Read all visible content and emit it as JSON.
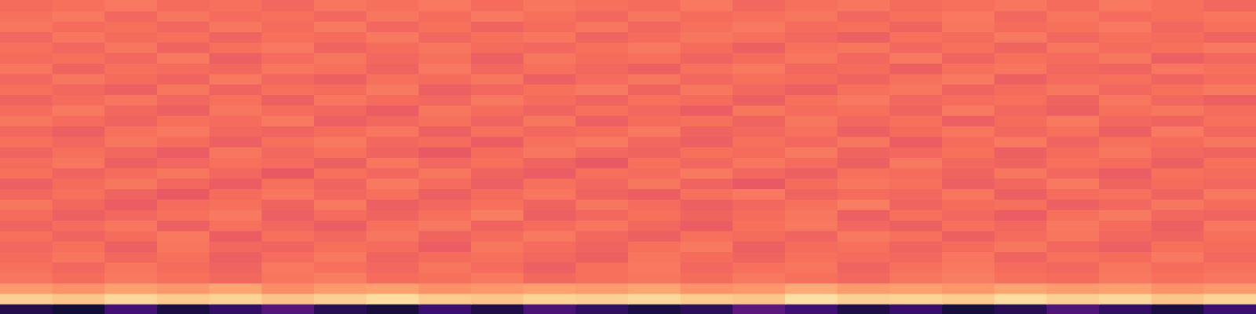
{
  "chart_data": {
    "type": "heatmap",
    "tick_labels": false,
    "xlim": [
      0,
      24
    ],
    "ylim": [
      0,
      30
    ],
    "zlim": [
      0,
      1
    ],
    "cells": [
      [
        0.14,
        0.1,
        0.22,
        0.12,
        0.18,
        0.26,
        0.15,
        0.11,
        0.2,
        0.13,
        0.24,
        0.17,
        0.12,
        0.16,
        0.28,
        0.21,
        0.13,
        0.19,
        0.11,
        0.15,
        0.25,
        0.18,
        0.12,
        0.2
      ],
      [
        0.9,
        0.88,
        0.92,
        0.89,
        0.91,
        0.87,
        0.9,
        0.93,
        0.89,
        0.88,
        0.91,
        0.9,
        0.92,
        0.89,
        0.88,
        0.94,
        0.9,
        0.91,
        0.89,
        0.93,
        0.9,
        0.92,
        0.88,
        0.91
      ],
      [
        0.79,
        0.77,
        0.8,
        0.78,
        0.81,
        0.76,
        0.79,
        0.8,
        0.77,
        0.78,
        0.8,
        0.79,
        0.81,
        0.77,
        0.78,
        0.82,
        0.79,
        0.8,
        0.78,
        0.81,
        0.79,
        0.8,
        0.77,
        0.79
      ],
      [
        0.71,
        0.69,
        0.72,
        0.7,
        0.68,
        0.71,
        0.73,
        0.69,
        0.7,
        0.72,
        0.68,
        0.7,
        0.71,
        0.69,
        0.72,
        0.7,
        0.68,
        0.71,
        0.73,
        0.7,
        0.69,
        0.72,
        0.7,
        0.71
      ],
      [
        0.7,
        0.68,
        0.71,
        0.69,
        0.67,
        0.72,
        0.7,
        0.68,
        0.71,
        0.69,
        0.66,
        0.7,
        0.72,
        0.68,
        0.7,
        0.71,
        0.67,
        0.7,
        0.72,
        0.69,
        0.68,
        0.71,
        0.69,
        0.7
      ],
      [
        0.69,
        0.71,
        0.68,
        0.7,
        0.66,
        0.69,
        0.72,
        0.67,
        0.69,
        0.7,
        0.68,
        0.66,
        0.71,
        0.69,
        0.67,
        0.7,
        0.69,
        0.68,
        0.71,
        0.67,
        0.7,
        0.69,
        0.72,
        0.68
      ],
      [
        0.68,
        0.7,
        0.66,
        0.71,
        0.68,
        0.67,
        0.7,
        0.69,
        0.65,
        0.71,
        0.69,
        0.67,
        0.7,
        0.72,
        0.66,
        0.69,
        0.7,
        0.67,
        0.69,
        0.71,
        0.68,
        0.66,
        0.7,
        0.69
      ],
      [
        0.7,
        0.67,
        0.69,
        0.72,
        0.65,
        0.7,
        0.68,
        0.71,
        0.67,
        0.69,
        0.72,
        0.68,
        0.66,
        0.7,
        0.69,
        0.67,
        0.72,
        0.7,
        0.66,
        0.69,
        0.71,
        0.68,
        0.67,
        0.7
      ],
      [
        0.67,
        0.69,
        0.71,
        0.66,
        0.7,
        0.68,
        0.65,
        0.7,
        0.72,
        0.67,
        0.69,
        0.71,
        0.68,
        0.65,
        0.7,
        0.72,
        0.68,
        0.66,
        0.7,
        0.68,
        0.72,
        0.69,
        0.66,
        0.71
      ],
      [
        0.69,
        0.66,
        0.68,
        0.7,
        0.72,
        0.66,
        0.69,
        0.67,
        0.7,
        0.73,
        0.66,
        0.68,
        0.7,
        0.67,
        0.69,
        0.71,
        0.66,
        0.7,
        0.68,
        0.65,
        0.7,
        0.72,
        0.68,
        0.67
      ],
      [
        0.71,
        0.68,
        0.65,
        0.69,
        0.7,
        0.67,
        0.72,
        0.66,
        0.68,
        0.7,
        0.67,
        0.71,
        0.69,
        0.66,
        0.68,
        0.7,
        0.73,
        0.67,
        0.69,
        0.7,
        0.66,
        0.68,
        0.71,
        0.69
      ],
      [
        0.68,
        0.7,
        0.67,
        0.64,
        0.69,
        0.71,
        0.68,
        0.7,
        0.66,
        0.69,
        0.71,
        0.67,
        0.65,
        0.7,
        0.72,
        0.67,
        0.69,
        0.68,
        0.71,
        0.66,
        0.69,
        0.7,
        0.67,
        0.72
      ],
      [
        0.66,
        0.69,
        0.71,
        0.68,
        0.65,
        0.7,
        0.67,
        0.72,
        0.69,
        0.66,
        0.7,
        0.68,
        0.71,
        0.67,
        0.64,
        0.69,
        0.71,
        0.7,
        0.66,
        0.68,
        0.72,
        0.67,
        0.69,
        0.68
      ],
      [
        0.7,
        0.67,
        0.69,
        0.71,
        0.68,
        0.64,
        0.7,
        0.68,
        0.71,
        0.67,
        0.65,
        0.7,
        0.69,
        0.72,
        0.68,
        0.66,
        0.7,
        0.69,
        0.67,
        0.71,
        0.68,
        0.65,
        0.7,
        0.69
      ],
      [
        0.69,
        0.71,
        0.66,
        0.68,
        0.7,
        0.69,
        0.66,
        0.71,
        0.68,
        0.7,
        0.67,
        0.64,
        0.7,
        0.68,
        0.71,
        0.69,
        0.66,
        0.72,
        0.68,
        0.67,
        0.7,
        0.69,
        0.66,
        0.7
      ],
      [
        0.67,
        0.7,
        0.68,
        0.65,
        0.71,
        0.68,
        0.7,
        0.67,
        0.64,
        0.69,
        0.71,
        0.68,
        0.67,
        0.7,
        0.69,
        0.72,
        0.67,
        0.68,
        0.7,
        0.66,
        0.69,
        0.71,
        0.68,
        0.67
      ],
      [
        0.7,
        0.68,
        0.71,
        0.69,
        0.66,
        0.7,
        0.72,
        0.68,
        0.69,
        0.65,
        0.7,
        0.72,
        0.68,
        0.66,
        0.7,
        0.68,
        0.71,
        0.65,
        0.69,
        0.72,
        0.67,
        0.7,
        0.69,
        0.71
      ],
      [
        0.68,
        0.66,
        0.7,
        0.72,
        0.68,
        0.67,
        0.69,
        0.71,
        0.66,
        0.7,
        0.68,
        0.69,
        0.72,
        0.67,
        0.68,
        0.7,
        0.66,
        0.69,
        0.71,
        0.68,
        0.7,
        0.66,
        0.72,
        0.68
      ],
      [
        0.71,
        0.69,
        0.67,
        0.7,
        0.69,
        0.72,
        0.66,
        0.68,
        0.7,
        0.67,
        0.71,
        0.66,
        0.69,
        0.7,
        0.67,
        0.71,
        0.68,
        0.7,
        0.66,
        0.69,
        0.72,
        0.68,
        0.67,
        0.7
      ],
      [
        0.69,
        0.72,
        0.68,
        0.66,
        0.71,
        0.69,
        0.68,
        0.65,
        0.71,
        0.69,
        0.67,
        0.7,
        0.68,
        0.65,
        0.71,
        0.69,
        0.7,
        0.67,
        0.72,
        0.68,
        0.66,
        0.7,
        0.71,
        0.69
      ],
      [
        0.67,
        0.69,
        0.71,
        0.68,
        0.7,
        0.66,
        0.71,
        0.69,
        0.68,
        0.72,
        0.69,
        0.67,
        0.7,
        0.69,
        0.66,
        0.7,
        0.72,
        0.68,
        0.69,
        0.7,
        0.67,
        0.71,
        0.68,
        0.66
      ],
      [
        0.7,
        0.68,
        0.66,
        0.71,
        0.67,
        0.7,
        0.69,
        0.72,
        0.66,
        0.68,
        0.7,
        0.72,
        0.67,
        0.71,
        0.68,
        0.66,
        0.7,
        0.71,
        0.67,
        0.69,
        0.71,
        0.68,
        0.7,
        0.72
      ],
      [
        0.68,
        0.71,
        0.69,
        0.67,
        0.72,
        0.68,
        0.66,
        0.7,
        0.69,
        0.71,
        0.66,
        0.69,
        0.71,
        0.68,
        0.7,
        0.69,
        0.67,
        0.7,
        0.72,
        0.66,
        0.69,
        0.7,
        0.67,
        0.69
      ],
      [
        0.71,
        0.67,
        0.7,
        0.69,
        0.68,
        0.71,
        0.7,
        0.67,
        0.72,
        0.68,
        0.7,
        0.68,
        0.66,
        0.7,
        0.72,
        0.68,
        0.69,
        0.66,
        0.7,
        0.71,
        0.68,
        0.67,
        0.71,
        0.7
      ],
      [
        0.69,
        0.7,
        0.68,
        0.72,
        0.66,
        0.69,
        0.71,
        0.68,
        0.7,
        0.66,
        0.71,
        0.69,
        0.7,
        0.67,
        0.69,
        0.71,
        0.68,
        0.72,
        0.67,
        0.7,
        0.69,
        0.71,
        0.66,
        0.68
      ],
      [
        0.7,
        0.68,
        0.71,
        0.67,
        0.7,
        0.72,
        0.67,
        0.69,
        0.71,
        0.69,
        0.68,
        0.7,
        0.72,
        0.69,
        0.66,
        0.7,
        0.71,
        0.68,
        0.7,
        0.67,
        0.71,
        0.69,
        0.7,
        0.72
      ],
      [
        0.68,
        0.71,
        0.69,
        0.7,
        0.67,
        0.7,
        0.69,
        0.72,
        0.68,
        0.7,
        0.71,
        0.67,
        0.69,
        0.71,
        0.7,
        0.68,
        0.66,
        0.7,
        0.69,
        0.72,
        0.68,
        0.7,
        0.69,
        0.67
      ],
      [
        0.71,
        0.69,
        0.7,
        0.68,
        0.71,
        0.69,
        0.72,
        0.68,
        0.7,
        0.67,
        0.69,
        0.71,
        0.68,
        0.7,
        0.72,
        0.69,
        0.7,
        0.67,
        0.71,
        0.69,
        0.7,
        0.72,
        0.68,
        0.7
      ],
      [
        0.7,
        0.72,
        0.68,
        0.71,
        0.69,
        0.7,
        0.68,
        0.71,
        0.69,
        0.72,
        0.7,
        0.68,
        0.71,
        0.69,
        0.7,
        0.71,
        0.68,
        0.7,
        0.72,
        0.68,
        0.71,
        0.69,
        0.7,
        0.71
      ],
      [
        0.69,
        0.7,
        0.72,
        0.69,
        0.7,
        0.68,
        0.71,
        0.7,
        0.72,
        0.69,
        0.71,
        0.7,
        0.69,
        0.72,
        0.68,
        0.7,
        0.71,
        0.69,
        0.7,
        0.71,
        0.69,
        0.72,
        0.7,
        0.68
      ]
    ]
  }
}
